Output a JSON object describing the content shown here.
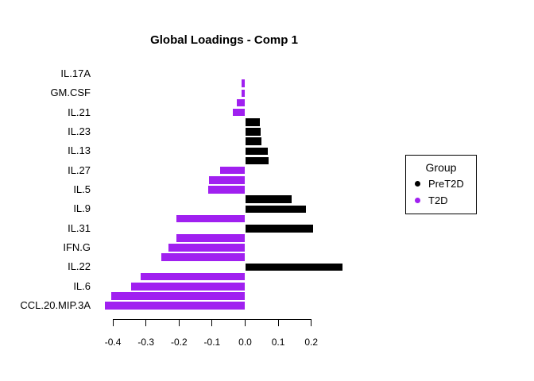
{
  "window": {
    "background": "#FFFFFF"
  },
  "chart_data": {
    "type": "bar",
    "orientation": "horizontal",
    "title": "Global Loadings - Comp 1",
    "xlabel": "",
    "ylabel": "",
    "grid": false,
    "x_axis": {
      "ticks": [
        -0.4,
        -0.3,
        -0.2,
        -0.1,
        0.0,
        0.1,
        0.2
      ],
      "tick_labels": [
        "-0.4",
        "-0.3",
        "-0.2",
        "-0.1",
        "0.0",
        "0.1",
        "0.2"
      ],
      "range_shown": [
        -0.45,
        0.31
      ]
    },
    "legend": {
      "title": "Group",
      "position": "right",
      "entries": [
        {
          "label": "PreT2D",
          "color": "#000000"
        },
        {
          "label": "T2D",
          "color": "#A020F0"
        }
      ]
    },
    "categories": [
      "IL.17A",
      "GM.CSF",
      "IL.21",
      "IL.23",
      "IL.13",
      "IL.27",
      "IL.5",
      "IL.9",
      "IL.31",
      "IFN.G",
      "IL.22",
      "IL.6",
      "CCL.20.MIP.3A"
    ],
    "category_slot_index": [
      0,
      2,
      4,
      6,
      8,
      10,
      12,
      14,
      16,
      18,
      20,
      22,
      24
    ],
    "bars": [
      {
        "slot": 1,
        "group": "T2D",
        "value": -0.01
      },
      {
        "slot": 2,
        "group": "T2D",
        "value": -0.011
      },
      {
        "slot": 3,
        "group": "T2D",
        "value": -0.026
      },
      {
        "slot": 4,
        "group": "T2D",
        "value": -0.038
      },
      {
        "slot": 5,
        "group": "PreT2D",
        "value": 0.044
      },
      {
        "slot": 6,
        "group": "PreT2D",
        "value": 0.047
      },
      {
        "slot": 7,
        "group": "PreT2D",
        "value": 0.049
      },
      {
        "slot": 8,
        "group": "PreT2D",
        "value": 0.068
      },
      {
        "slot": 9,
        "group": "PreT2D",
        "value": 0.071
      },
      {
        "slot": 10,
        "group": "T2D",
        "value": -0.076
      },
      {
        "slot": 11,
        "group": "T2D",
        "value": -0.11
      },
      {
        "slot": 12,
        "group": "T2D",
        "value": -0.111
      },
      {
        "slot": 13,
        "group": "PreT2D",
        "value": 0.14
      },
      {
        "slot": 14,
        "group": "PreT2D",
        "value": 0.184
      },
      {
        "slot": 15,
        "group": "T2D",
        "value": -0.207
      },
      {
        "slot": 16,
        "group": "PreT2D",
        "value": 0.206
      },
      {
        "slot": 17,
        "group": "T2D",
        "value": -0.207
      },
      {
        "slot": 18,
        "group": "T2D",
        "value": -0.233
      },
      {
        "slot": 19,
        "group": "T2D",
        "value": -0.254
      },
      {
        "slot": 20,
        "group": "PreT2D",
        "value": 0.294
      },
      {
        "slot": 21,
        "group": "T2D",
        "value": -0.317
      },
      {
        "slot": 22,
        "group": "T2D",
        "value": -0.345
      },
      {
        "slot": 23,
        "group": "T2D",
        "value": -0.406
      },
      {
        "slot": 24,
        "group": "T2D",
        "value": -0.424
      }
    ]
  }
}
